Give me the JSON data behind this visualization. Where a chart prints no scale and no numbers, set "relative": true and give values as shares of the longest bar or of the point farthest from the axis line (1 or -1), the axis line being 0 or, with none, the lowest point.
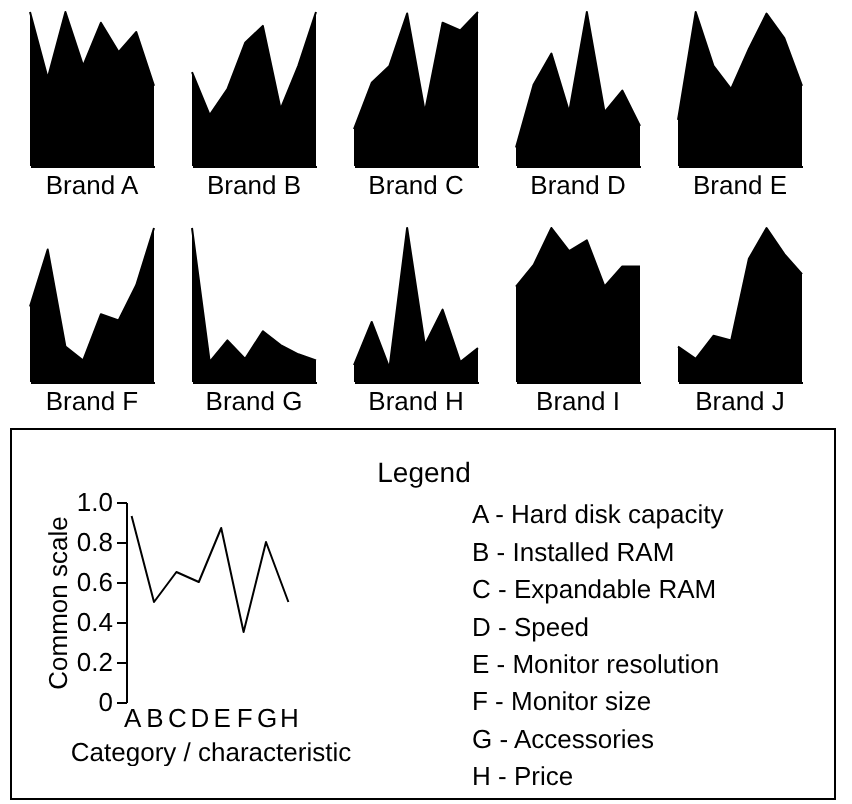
{
  "chart_data": [
    {
      "type": "area",
      "title": "Brand A",
      "relative": true,
      "color": "#000000",
      "categories": [
        null,
        null,
        null,
        null,
        null,
        null,
        null,
        null
      ],
      "values": [
        1.0,
        0.57,
        1.0,
        0.65,
        0.93,
        0.74,
        0.87,
        0.52
      ]
    },
    {
      "type": "area",
      "title": "Brand B",
      "relative": true,
      "color": "#000000",
      "categories": [
        null,
        null,
        null,
        null,
        null,
        null,
        null,
        null
      ],
      "values": [
        0.61,
        0.33,
        0.5,
        0.8,
        0.91,
        0.37,
        0.65,
        1.0
      ]
    },
    {
      "type": "area",
      "title": "Brand C",
      "relative": true,
      "color": "#000000",
      "categories": [
        null,
        null,
        null,
        null,
        null,
        null,
        null,
        null
      ],
      "values": [
        0.24,
        0.54,
        0.65,
        0.99,
        0.35,
        0.93,
        0.88,
        1.0
      ]
    },
    {
      "type": "area",
      "title": "Brand D",
      "relative": true,
      "color": "#000000",
      "categories": [
        null,
        null,
        null,
        null,
        null,
        null,
        null,
        null
      ],
      "values": [
        0.12,
        0.53,
        0.73,
        0.35,
        1.0,
        0.35,
        0.49,
        0.26
      ]
    },
    {
      "type": "area",
      "title": "Brand E",
      "relative": true,
      "color": "#000000",
      "categories": [
        null,
        null,
        null,
        null,
        null,
        null,
        null,
        null
      ],
      "values": [
        0.3,
        1.0,
        0.65,
        0.5,
        0.76,
        0.99,
        0.83,
        0.52
      ]
    },
    {
      "type": "area",
      "title": "Brand F",
      "relative": true,
      "color": "#000000",
      "categories": [
        null,
        null,
        null,
        null,
        null,
        null,
        null,
        null
      ],
      "values": [
        0.49,
        0.86,
        0.23,
        0.14,
        0.44,
        0.4,
        0.63,
        1.0
      ]
    },
    {
      "type": "area",
      "title": "Brand G",
      "relative": true,
      "color": "#000000",
      "categories": [
        null,
        null,
        null,
        null,
        null,
        null,
        null,
        null
      ],
      "values": [
        1.0,
        0.13,
        0.27,
        0.15,
        0.33,
        0.24,
        0.18,
        0.14
      ]
    },
    {
      "type": "area",
      "title": "Brand H",
      "relative": true,
      "color": "#000000",
      "categories": [
        null,
        null,
        null,
        null,
        null,
        null,
        null,
        null
      ],
      "values": [
        0.11,
        0.39,
        0.09,
        1.0,
        0.24,
        0.47,
        0.13,
        0.22
      ]
    },
    {
      "type": "area",
      "title": "Brand I",
      "relative": true,
      "color": "#000000",
      "categories": [
        null,
        null,
        null,
        null,
        null,
        null,
        null,
        null
      ],
      "values": [
        0.62,
        0.76,
        1.0,
        0.85,
        0.92,
        0.62,
        0.75,
        0.75
      ]
    },
    {
      "type": "area",
      "title": "Brand J",
      "relative": true,
      "color": "#000000",
      "categories": [
        null,
        null,
        null,
        null,
        null,
        null,
        null,
        null
      ],
      "values": [
        0.23,
        0.15,
        0.3,
        0.27,
        0.8,
        1.0,
        0.83,
        0.7
      ]
    },
    {
      "type": "line",
      "xlabel": "Category / characteristic",
      "ylabel": "Common scale",
      "color": "#000000",
      "categories": [
        "A",
        "B",
        "C",
        "D",
        "E",
        "F",
        "G",
        "H"
      ],
      "values": [
        0.93,
        0.5,
        0.65,
        0.6,
        0.87,
        0.35,
        0.8,
        0.5
      ],
      "ylim": [
        0,
        1
      ],
      "yticks": [
        0,
        0.2,
        0.4,
        0.6,
        0.8,
        {
          "value": 1,
          "label": "1.0"
        }
      ]
    },
    {
      "type": "other",
      "title": "Legend",
      "annotations": [
        "A - Hard disk capacity",
        "B - Installed RAM",
        "C - Expandable RAM",
        "D - Speed",
        "E - Monitor resolution",
        "F - Monitor size",
        "G - Accessories",
        "H - Price"
      ]
    }
  ]
}
